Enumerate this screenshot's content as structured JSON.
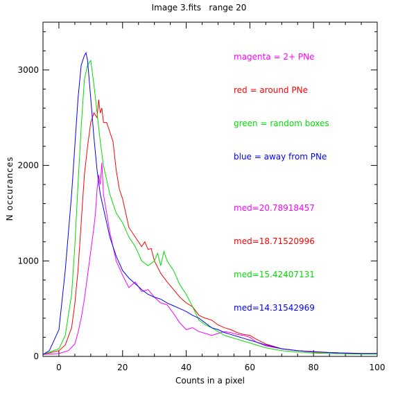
{
  "chart_data": {
    "type": "line",
    "title": "Image 3.fits   range 20",
    "xlabel": "Counts in a pixel",
    "ylabel": "N occurances",
    "xlim": [
      -5,
      100
    ],
    "ylim": [
      0,
      3500
    ],
    "x_ticks": [
      0,
      20,
      40,
      60,
      80,
      100
    ],
    "y_ticks": [
      0,
      1000,
      2000,
      3000
    ],
    "legend_placement": "top-right",
    "legend": [
      {
        "text": "magenta = 2+ PNe",
        "color": "#ff00ff"
      },
      {
        "text": "red = around PNe",
        "color": "#ff0000"
      },
      {
        "text": "green = random boxes",
        "color": "#00dd00"
      },
      {
        "text": "blue = away from PNe",
        "color": "#0000ff"
      }
    ],
    "medians": [
      {
        "text": "med=20.78918457",
        "color": "#ff00ff"
      },
      {
        "text": "med=18.71520996",
        "color": "#ff0000"
      },
      {
        "text": "med=15.42407131",
        "color": "#00dd00"
      },
      {
        "text": "med=14.31542969",
        "color": "#0000ff"
      }
    ],
    "series": [
      {
        "color": "#ff00ff",
        "x": [
          -5,
          0,
          3,
          5,
          6,
          7,
          8,
          9,
          10,
          11,
          11.5,
          12,
          12.5,
          13,
          13.5,
          14,
          15,
          16,
          17,
          18,
          20,
          22,
          24,
          26,
          28,
          30,
          32,
          34,
          36,
          38,
          40,
          42,
          44,
          46,
          48,
          50,
          52,
          54,
          56,
          58,
          60,
          62,
          65,
          70,
          75,
          80,
          85,
          90,
          95,
          100
        ],
        "y": [
          20,
          30,
          60,
          130,
          250,
          400,
          600,
          850,
          1100,
          1350,
          1500,
          1750,
          1900,
          1800,
          2030,
          1700,
          1500,
          1300,
          1150,
          1000,
          850,
          720,
          780,
          680,
          700,
          620,
          560,
          540,
          450,
          350,
          280,
          300,
          260,
          240,
          220,
          240,
          260,
          250,
          230,
          220,
          200,
          150,
          110,
          80,
          60,
          45,
          40,
          35,
          30,
          30
        ]
      },
      {
        "color": "#ff0000",
        "x": [
          -5,
          0,
          2,
          4,
          5,
          6,
          7,
          8,
          9,
          10,
          11,
          12,
          12.5,
          13,
          13.5,
          14,
          15,
          16,
          17,
          18,
          19,
          20,
          21,
          22,
          24,
          26,
          27,
          28,
          29,
          30,
          32,
          34,
          36,
          38,
          40,
          42,
          44,
          46,
          48,
          50,
          52,
          54,
          56,
          58,
          60,
          62,
          65,
          70,
          75,
          80,
          85,
          90,
          95,
          100
        ],
        "y": [
          20,
          60,
          120,
          300,
          550,
          900,
          1400,
          1900,
          2200,
          2450,
          2550,
          2500,
          2690,
          2550,
          2600,
          2450,
          2450,
          2350,
          2250,
          1950,
          1750,
          1650,
          1500,
          1350,
          1250,
          1150,
          1200,
          1120,
          1130,
          1000,
          870,
          780,
          700,
          620,
          560,
          520,
          430,
          400,
          380,
          330,
          300,
          280,
          250,
          230,
          220,
          180,
          130,
          80,
          60,
          45,
          40,
          35,
          30,
          30
        ]
      },
      {
        "color": "#00dd00",
        "x": [
          -5,
          0,
          2,
          4,
          5,
          6,
          7,
          8,
          9,
          10,
          11,
          12,
          13,
          14,
          15,
          16,
          17,
          18,
          20,
          22,
          24,
          26,
          28,
          30,
          31,
          32,
          33,
          34,
          36,
          38,
          40,
          42,
          44,
          46,
          48,
          50,
          52,
          54,
          56,
          58,
          60,
          62,
          65,
          70,
          75,
          80,
          85,
          90,
          95,
          100
        ],
        "y": [
          20,
          80,
          220,
          650,
          1150,
          1800,
          2400,
          2900,
          3050,
          3100,
          2850,
          2550,
          2250,
          2000,
          1850,
          1700,
          1600,
          1500,
          1400,
          1250,
          1150,
          1000,
          950,
          1000,
          1080,
          950,
          1100,
          1000,
          900,
          750,
          650,
          520,
          380,
          330,
          300,
          260,
          220,
          200,
          180,
          160,
          140,
          120,
          90,
          60,
          45,
          35,
          30,
          28,
          25,
          25
        ]
      },
      {
        "color": "#0000ff",
        "x": [
          -5,
          -3,
          0,
          2,
          4,
          5,
          6,
          7,
          8,
          8.5,
          9,
          10,
          11,
          12,
          13,
          14,
          15,
          16,
          17,
          18,
          20,
          22,
          24,
          26,
          28,
          30,
          32,
          34,
          36,
          38,
          40,
          42,
          44,
          46,
          48,
          50,
          52,
          54,
          56,
          58,
          60,
          62,
          65,
          70,
          75,
          80,
          85,
          90,
          95,
          100
        ],
        "y": [
          20,
          60,
          280,
          900,
          1700,
          2200,
          2700,
          3050,
          3150,
          3180,
          3100,
          2700,
          2300,
          1950,
          1700,
          1550,
          1400,
          1250,
          1150,
          1050,
          900,
          820,
          760,
          700,
          650,
          620,
          600,
          560,
          530,
          500,
          470,
          430,
          400,
          350,
          300,
          280,
          250,
          230,
          210,
          190,
          170,
          150,
          120,
          80,
          60,
          50,
          40,
          35,
          30,
          30
        ]
      }
    ]
  }
}
